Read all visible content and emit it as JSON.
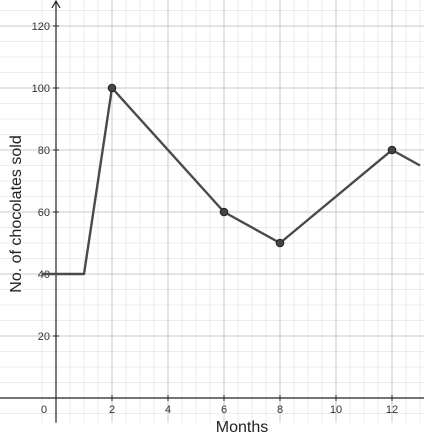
{
  "chart_data": {
    "type": "line",
    "title": "",
    "xlabel": "Months",
    "ylabel": "No. of chocolates sold",
    "xlim": [
      -0.5,
      13
    ],
    "ylim": [
      -8,
      128
    ],
    "x_ticks": [
      0,
      2,
      4,
      6,
      8,
      10,
      12
    ],
    "y_ticks": [
      20,
      40,
      60,
      80,
      100,
      120
    ],
    "grid": true,
    "legend": "none",
    "series": [
      {
        "points": [
          {
            "x": -0.5,
            "y": 40
          },
          {
            "x": 1,
            "y": 40
          },
          {
            "x": 2,
            "y": 100
          },
          {
            "x": 6,
            "y": 60
          },
          {
            "x": 8,
            "y": 50
          },
          {
            "x": 12,
            "y": 80
          },
          {
            "x": 13,
            "y": 75
          }
        ],
        "markers": [
          {
            "x": 2,
            "y": 100
          },
          {
            "x": 6,
            "y": 60
          },
          {
            "x": 8,
            "y": 50
          },
          {
            "x": 12,
            "y": 80
          }
        ]
      }
    ],
    "colors": {
      "line": "#4a4a4a",
      "marker": "#444444",
      "grid_major": "#c8c8c8",
      "grid_minor": "#ececec",
      "axis": "#222222"
    }
  }
}
